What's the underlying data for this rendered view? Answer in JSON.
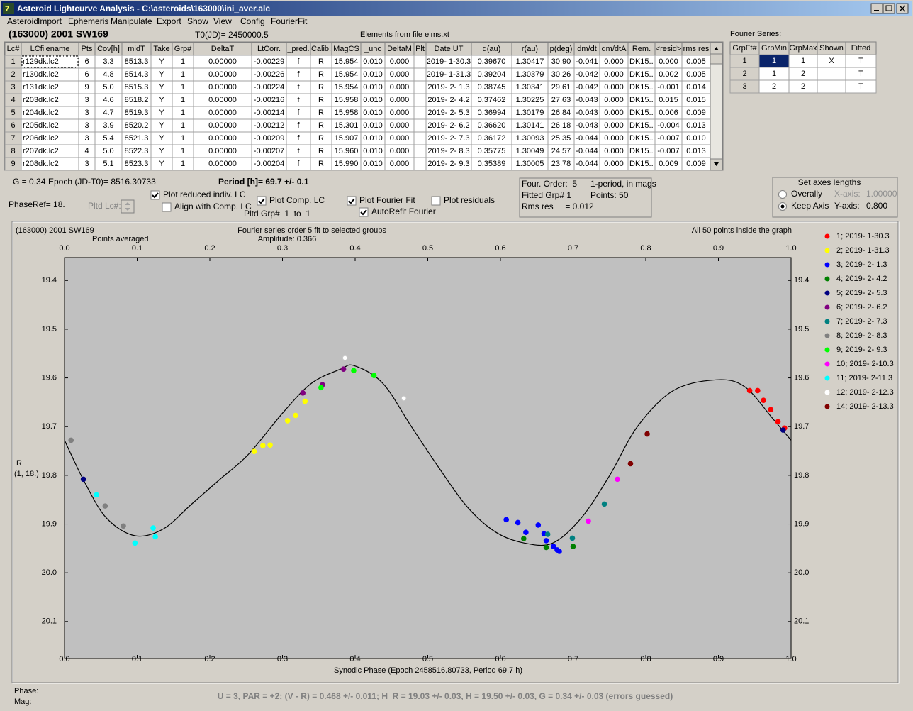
{
  "window": {
    "title": "Asteroid Lightcurve Analysis - C:\\asteroids\\163000\\ini_aver.alc",
    "menu": [
      "Asteroid",
      "Import",
      "Ephemeris",
      "Manipulate",
      "Export",
      "Show",
      "View",
      "Config",
      "FourierFit"
    ]
  },
  "header": {
    "object": "(163000) 2001 SW169",
    "t0": "T0(JD)= 2450000.5",
    "elements": "Elements from file elms.xt",
    "fourier_label": "Fourier Series:"
  },
  "table": {
    "columns": [
      "Lc#",
      "LCfilename",
      "Pts",
      "Cov[h]",
      "midT",
      "Take",
      "Grp#",
      "DeltaT",
      "LtCorr.",
      "_pred.",
      "Calib.",
      "MagCS",
      "_unc",
      "DeltaM",
      "Plt",
      "Date UT",
      "d(au)",
      "r(au)",
      "p(deg)",
      "dm/dt",
      "dm/dtA",
      "Rem.",
      "<resid>",
      "rms res"
    ],
    "rows": [
      [
        "1",
        "r129dk.lc2",
        "6",
        "3.3",
        "8513.3",
        "Y",
        "1",
        "0.00000",
        "-0.00229",
        "f",
        "R",
        "15.954",
        "0.010",
        "0.000",
        null,
        "2019- 1-30.3",
        "0.39670",
        "1.30417",
        "30.90",
        "-0.041",
        "0.000",
        "DK15..",
        "0.000",
        "0.005"
      ],
      [
        "2",
        "r130dk.lc2",
        "6",
        "4.8",
        "8514.3",
        "Y",
        "1",
        "0.00000",
        "-0.00226",
        "f",
        "R",
        "15.954",
        "0.010",
        "0.000",
        null,
        "2019- 1-31.3",
        "0.39204",
        "1.30379",
        "30.26",
        "-0.042",
        "0.000",
        "DK15..",
        "0.002",
        "0.005"
      ],
      [
        "3",
        "r131dk.lc2",
        "9",
        "5.0",
        "8515.3",
        "Y",
        "1",
        "0.00000",
        "-0.00224",
        "f",
        "R",
        "15.954",
        "0.010",
        "0.000",
        null,
        "2019- 2- 1.3",
        "0.38745",
        "1.30341",
        "29.61",
        "-0.042",
        "0.000",
        "DK15..",
        "-0.001",
        "0.014"
      ],
      [
        "4",
        "r203dk.lc2",
        "3",
        "4.6",
        "8518.2",
        "Y",
        "1",
        "0.00000",
        "-0.00216",
        "f",
        "R",
        "15.958",
        "0.010",
        "0.000",
        null,
        "2019- 2- 4.2",
        "0.37462",
        "1.30225",
        "27.63",
        "-0.043",
        "0.000",
        "DK15..",
        "0.015",
        "0.015"
      ],
      [
        "5",
        "r204dk.lc2",
        "3",
        "4.7",
        "8519.3",
        "Y",
        "1",
        "0.00000",
        "-0.00214",
        "f",
        "R",
        "15.958",
        "0.010",
        "0.000",
        null,
        "2019- 2- 5.3",
        "0.36994",
        "1.30179",
        "26.84",
        "-0.043",
        "0.000",
        "DK15..",
        "0.006",
        "0.009"
      ],
      [
        "6",
        "r205dk.lc2",
        "3",
        "3.9",
        "8520.2",
        "Y",
        "1",
        "0.00000",
        "-0.00212",
        "f",
        "R",
        "15.301",
        "0.010",
        "0.000",
        null,
        "2019- 2- 6.2",
        "0.36620",
        "1.30141",
        "26.18",
        "-0.043",
        "0.000",
        "DK15..",
        "-0.004",
        "0.013"
      ],
      [
        "7",
        "r206dk.lc2",
        "3",
        "5.4",
        "8521.3",
        "Y",
        "1",
        "0.00000",
        "-0.00209",
        "f",
        "R",
        "15.907",
        "0.010",
        "0.000",
        null,
        "2019- 2- 7.3",
        "0.36172",
        "1.30093",
        "25.35",
        "-0.044",
        "0.000",
        "DK15..",
        "-0.007",
        "0.010"
      ],
      [
        "8",
        "r207dk.lc2",
        "4",
        "5.0",
        "8522.3",
        "Y",
        "1",
        "0.00000",
        "-0.00207",
        "f",
        "R",
        "15.960",
        "0.010",
        "0.000",
        null,
        "2019- 2- 8.3",
        "0.35775",
        "1.30049",
        "24.57",
        "-0.044",
        "0.000",
        "DK15..",
        "-0.007",
        "0.013"
      ],
      [
        "9",
        "r208dk.lc2",
        "3",
        "5.1",
        "8523.3",
        "Y",
        "1",
        "0.00000",
        "-0.00204",
        "f",
        "R",
        "15.990",
        "0.010",
        "0.000",
        null,
        "2019- 2- 9.3",
        "0.35389",
        "1.30005",
        "23.78",
        "-0.044",
        "0.000",
        "DK15..",
        "0.009",
        "0.009"
      ]
    ]
  },
  "fourier_table": {
    "columns": [
      "GrpFt#",
      "GrpMin",
      "GrpMax",
      "Shown",
      "Fitted"
    ],
    "rows": [
      [
        "1",
        "1",
        "1",
        "X",
        "T"
      ],
      [
        "2",
        "1",
        "2",
        null,
        "T"
      ],
      [
        "3",
        "2",
        "2",
        null,
        "T"
      ]
    ]
  },
  "controls": {
    "g": "G = 0.34",
    "epoch": "Epoch (JD-T0)= 8516.30733",
    "period": "Period [h]= 69.7 +/- 0.1",
    "phaseref": "PhaseRef= 18.",
    "pltd_lc": "Pltd Lc#:",
    "pltd_grp": "Pltd Grp#  1  to  1",
    "checkboxes": [
      {
        "label": "Plot reduced indiv. LC",
        "checked": true
      },
      {
        "label": "Align with Comp. LC",
        "checked": false
      },
      {
        "label": "Plot Comp. LC",
        "checked": true
      },
      {
        "label": "Plot Fourier Fit",
        "checked": true
      },
      {
        "label": "AutoRefit Fourier",
        "checked": true
      },
      {
        "label": "Plot residuals",
        "checked": false
      }
    ]
  },
  "info": {
    "order": "Four. Order:  5",
    "period_mode": "1-period, in mags",
    "fitted": "Fitted Grp# 1",
    "points": "Points: 50",
    "rms": "Rms res     = 0.012"
  },
  "axes_box": {
    "title": "Set axes lengths",
    "options": [
      {
        "label": "Overally",
        "selected": false
      },
      {
        "label": "Keep Axis",
        "selected": true
      }
    ],
    "x_label": "X-axis:",
    "x_value": "1.00000",
    "y_label": "Y-axis:",
    "y_value": "0.800"
  },
  "chart_data": {
    "type": "scatter",
    "title": "(163000) 2001 SW169",
    "subtitle": "Points averaged",
    "fit_title": "Fourier series order 5 fit to selected groups",
    "amplitude": "Amplitude: 0.366",
    "note": "All 50 points inside the graph",
    "xlabel": "Synodic Phase (Epoch 2458516.80733, Period 69.7 h)",
    "ylabel": [
      "R",
      "(1, 18.)"
    ],
    "xlim": [
      0,
      1
    ],
    "ylim": [
      19.353,
      20.176
    ],
    "y_inverted": true,
    "xticks": [
      {
        "value": 0,
        "label": "0.0"
      },
      0.1,
      0.2,
      0.3,
      0.4,
      0.5,
      0.6,
      0.7,
      0.8,
      0.9,
      {
        "value": 1,
        "label": "1.0"
      }
    ],
    "yticks": [
      19.4,
      19.5,
      19.6,
      19.7,
      19.8,
      19.9,
      {
        "value": 20,
        "label": "20.0"
      },
      20.1
    ],
    "series": [
      {
        "name": "1; 2019- 1-30.3",
        "color": "#ff0000",
        "x": [
          0.943,
          0.954,
          0.962,
          0.972,
          0.982,
          0.991
        ],
        "y": [
          19.626,
          19.626,
          19.646,
          19.665,
          19.69,
          19.703
        ]
      },
      {
        "name": "2; 2019- 1-31.3",
        "color": "#ffff00",
        "x": [
          0.261,
          0.273,
          0.283,
          0.307,
          0.318,
          0.331
        ],
        "y": [
          19.751,
          19.739,
          19.738,
          19.688,
          19.677,
          19.648
        ]
      },
      {
        "name": "3; 2019- 2- 1.3",
        "color": "#0000ff",
        "x": [
          0.608,
          0.624,
          0.635,
          0.652,
          0.66,
          0.663,
          0.673,
          0.678,
          0.681
        ],
        "y": [
          19.891,
          19.897,
          19.917,
          19.902,
          19.92,
          19.934,
          19.946,
          19.953,
          19.956
        ]
      },
      {
        "name": "4; 2019- 2- 4.2",
        "color": "#008000",
        "x": [
          0.632,
          0.663,
          0.7
        ],
        "y": [
          19.93,
          19.948,
          19.946
        ]
      },
      {
        "name": "5; 2019- 2- 5.3",
        "color": "#000080",
        "x": [
          0.026,
          0.989
        ],
        "y": [
          19.808,
          19.707
        ]
      },
      {
        "name": "6; 2019- 2- 6.2",
        "color": "#800080",
        "x": [
          0.328,
          0.355,
          0.384
        ],
        "y": [
          19.631,
          19.614,
          19.582
        ]
      },
      {
        "name": "7; 2019- 2- 7.3",
        "color": "#008080",
        "x": [
          0.665,
          0.699,
          0.743
        ],
        "y": [
          19.921,
          19.929,
          19.859
        ]
      },
      {
        "name": "8; 2019- 2- 8.3",
        "color": "#808080",
        "x": [
          0.009,
          0.056,
          0.081
        ],
        "y": [
          19.728,
          19.863,
          19.904
        ]
      },
      {
        "name": "9; 2019- 2- 9.3",
        "color": "#00ff00",
        "x": [
          0.353,
          0.398,
          0.426
        ],
        "y": [
          19.62,
          19.585,
          19.595
        ]
      },
      {
        "name": "10; 2019- 2-10.3",
        "color": "#ff00ff",
        "x": [
          0.721,
          0.761
        ],
        "y": [
          19.894,
          19.808
        ]
      },
      {
        "name": "11; 2019- 2-11.3",
        "color": "#00ffff",
        "x": [
          0.044,
          0.097,
          0.122,
          0.125
        ],
        "y": [
          19.84,
          19.939,
          19.908,
          19.926
        ]
      },
      {
        "name": "12; 2019- 2-12.3",
        "color": "#ffffff",
        "x": [
          0.386,
          0.467
        ],
        "y": [
          19.559,
          19.642
        ]
      },
      {
        "name": "14; 2019- 2-13.3",
        "color": "#800000",
        "x": [
          0.779,
          0.802
        ],
        "y": [
          19.776,
          19.715
        ]
      }
    ],
    "fit": {
      "color": "#000000",
      "x": [
        0,
        0.028,
        0.058,
        0.097,
        0.136,
        0.175,
        0.214,
        0.253,
        0.302,
        0.34,
        0.38,
        0.399,
        0.438,
        0.477,
        0.516,
        0.555,
        0.594,
        0.633,
        0.672,
        0.711,
        0.75,
        0.789,
        0.838,
        0.897,
        0.936,
        0.975,
        1
      ],
      "y": [
        19.728,
        19.815,
        19.888,
        19.924,
        19.91,
        19.859,
        19.808,
        19.757,
        19.669,
        19.611,
        19.582,
        19.575,
        19.611,
        19.699,
        19.786,
        19.866,
        19.917,
        19.939,
        19.939,
        19.888,
        19.801,
        19.699,
        19.626,
        19.604,
        19.618,
        19.684,
        19.728
      ]
    }
  },
  "footer": {
    "phase": "Phase:",
    "mag": "Mag:",
    "summary": "U = 3, PAR = +2; (V - R) = 0.468 +/- 0.011; H_R = 19.03 +/- 0.03, H = 19.50 +/- 0.03, G = 0.34 +/- 0.03 (errors guessed)"
  }
}
